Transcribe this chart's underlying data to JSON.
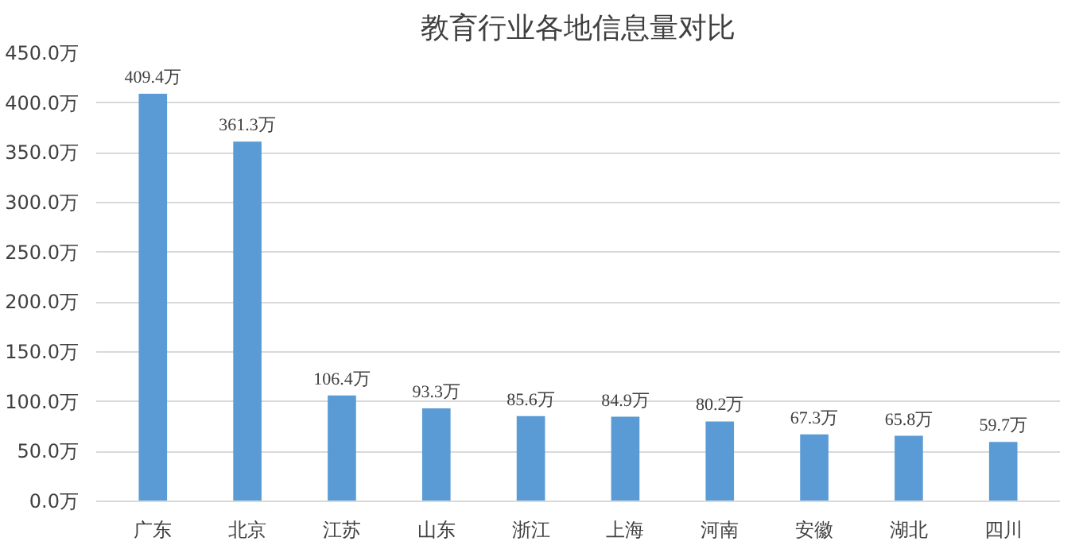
{
  "chart_data": {
    "type": "bar",
    "title": "教育行业各地信息量对比",
    "categories": [
      "广东",
      "北京",
      "江苏",
      "山东",
      "浙江",
      "上海",
      "河南",
      "安徽",
      "湖北",
      "四川"
    ],
    "values": [
      409.4,
      361.3,
      106.4,
      93.3,
      85.6,
      84.9,
      80.2,
      67.3,
      65.8,
      59.7
    ],
    "value_labels": [
      "409.4万",
      "361.3万",
      "106.4万",
      "93.3万",
      "85.6万",
      "84.9万",
      "80.2万",
      "67.3万",
      "65.8万",
      "59.7万"
    ],
    "color": "#5b9bd5",
    "ylim": [
      0,
      450
    ],
    "yticks": [
      {
        "value": 0,
        "label": "0.0万"
      },
      {
        "value": 50,
        "label": "50.0万"
      },
      {
        "value": 100,
        "label": "100.0万"
      },
      {
        "value": 150,
        "label": "150.0万"
      },
      {
        "value": 200,
        "label": "200.0万"
      },
      {
        "value": 250,
        "label": "250.0万"
      },
      {
        "value": 300,
        "label": "300.0万"
      },
      {
        "value": 350,
        "label": "350.0万"
      },
      {
        "value": 400,
        "label": "400.0万"
      },
      {
        "value": 450,
        "label": "450.0万"
      }
    ],
    "grid": "y"
  }
}
